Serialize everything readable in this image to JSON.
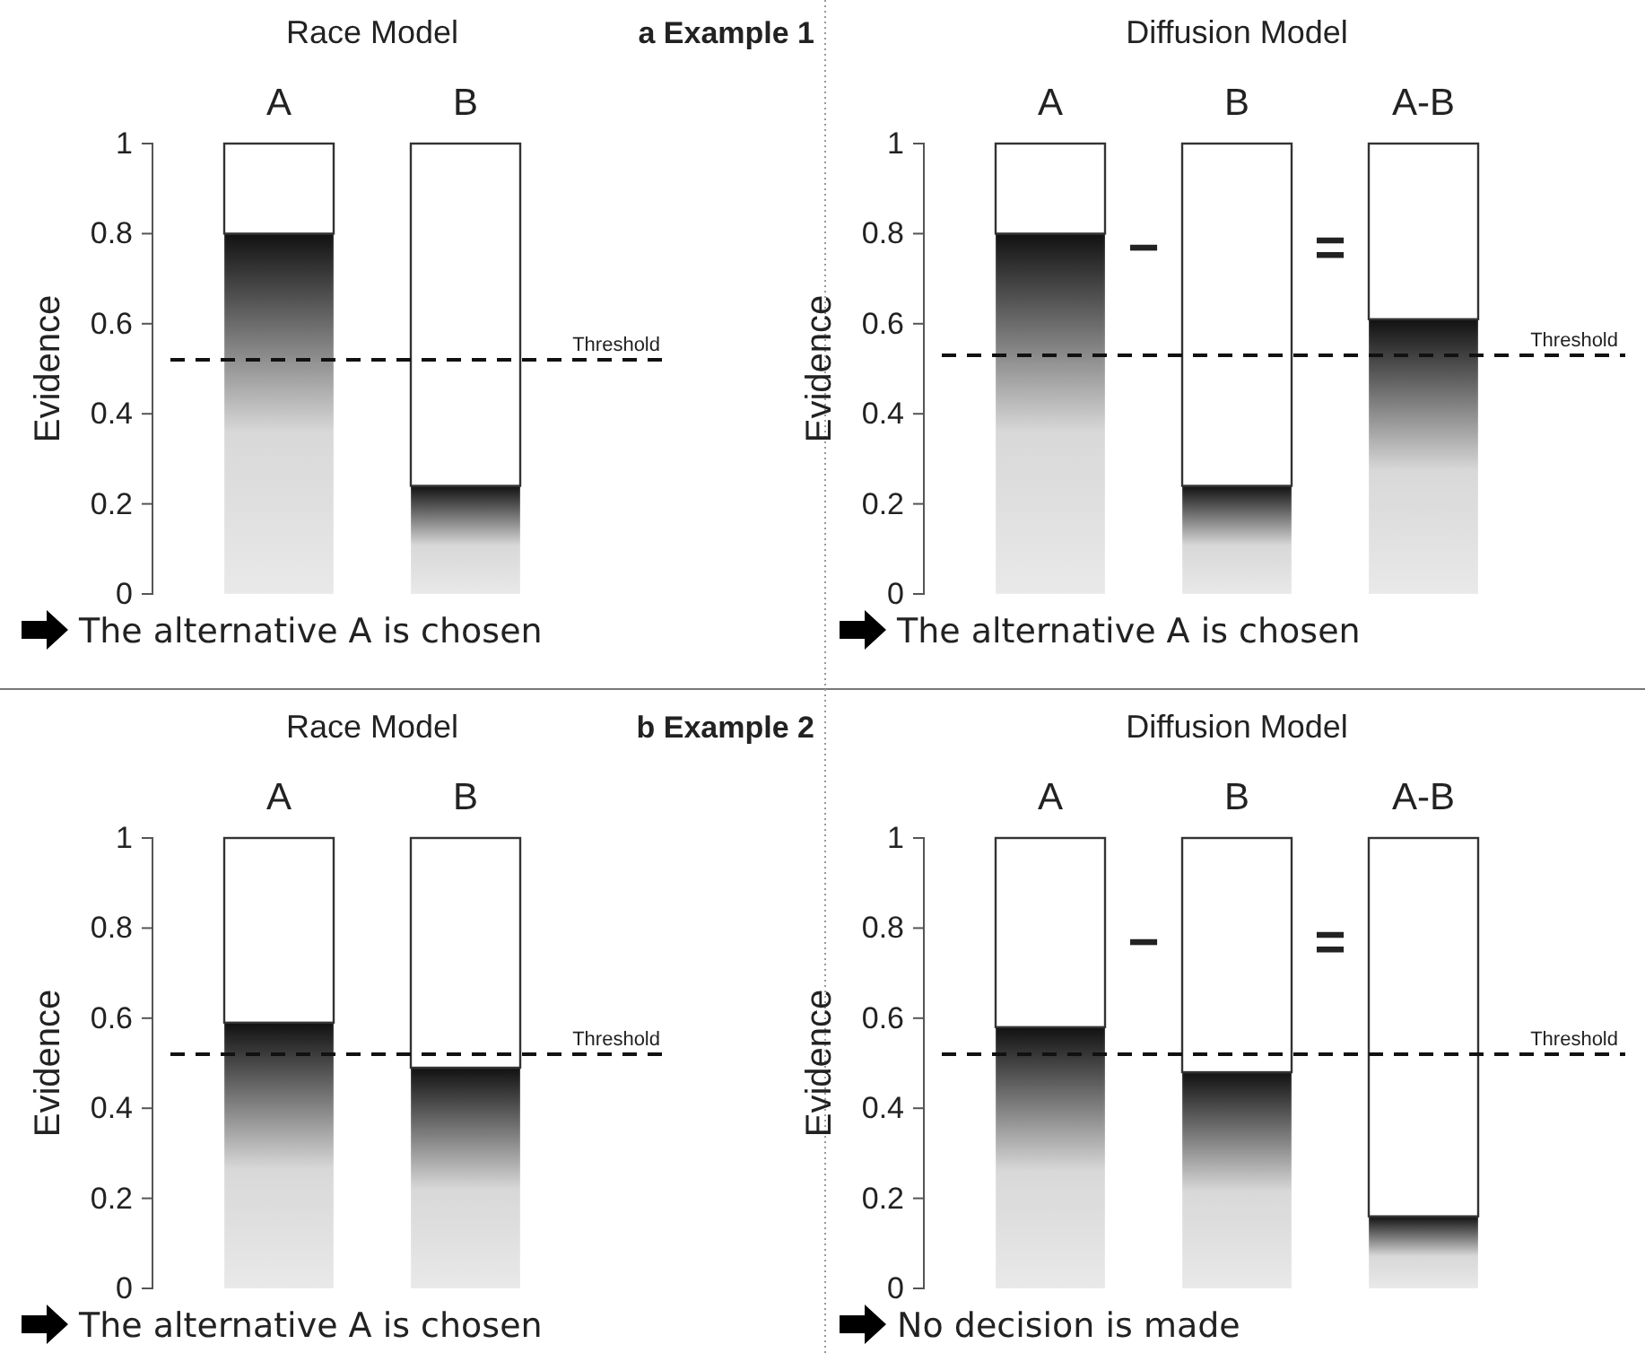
{
  "chart_data": [
    {
      "type": "bar",
      "title": "Race Model",
      "subtitle": "a Example 1",
      "ylabel": "Evidence",
      "categories": [
        "A",
        "B"
      ],
      "stacked": true,
      "series": [
        {
          "color": "#111111",
          "values": [
            0.8,
            0.24
          ]
        },
        {
          "color": "#ffffff",
          "values": [
            0.2,
            0.76
          ]
        }
      ],
      "ylim": [
        0,
        1
      ],
      "yticks": [
        0,
        0.2,
        0.4,
        0.6,
        0.8,
        1
      ],
      "ref_lines": [
        {
          "axis": "y",
          "value": 0.52,
          "label": "Threshold",
          "line_style": "dashed"
        }
      ],
      "annotations": [
        "The alternative A is chosen"
      ]
    },
    {
      "type": "bar",
      "title": "Diffusion Model",
      "ylabel": "Evidence",
      "categories": [
        "A",
        "B",
        "A-B"
      ],
      "stacked": true,
      "series": [
        {
          "color": "#111111",
          "values": [
            0.8,
            0.24,
            0.61
          ]
        },
        {
          "color": "#ffffff",
          "values": [
            0.2,
            0.76,
            0.39
          ]
        }
      ],
      "ylim": [
        0,
        1
      ],
      "yticks": [
        0,
        0.2,
        0.4,
        0.6,
        0.8,
        1
      ],
      "ref_lines": [
        {
          "axis": "y",
          "value": 0.53,
          "label": "Threshold",
          "line_style": "dashed"
        }
      ],
      "annotations": [
        "−",
        "=",
        "The alternative A is chosen"
      ]
    },
    {
      "type": "bar",
      "title": "Race Model",
      "subtitle": "b Example 2",
      "ylabel": "Evidence",
      "categories": [
        "A",
        "B"
      ],
      "stacked": true,
      "series": [
        {
          "color": "#111111",
          "values": [
            0.59,
            0.49
          ]
        },
        {
          "color": "#ffffff",
          "values": [
            0.41,
            0.51
          ]
        }
      ],
      "ylim": [
        0,
        1
      ],
      "yticks": [
        0,
        0.2,
        0.4,
        0.6,
        0.8,
        1
      ],
      "ref_lines": [
        {
          "axis": "y",
          "value": 0.52,
          "label": "Threshold",
          "line_style": "dashed"
        }
      ],
      "annotations": [
        "The alternative A is chosen"
      ]
    },
    {
      "type": "bar",
      "title": "Diffusion Model",
      "ylabel": "Evidence",
      "categories": [
        "A",
        "B",
        "A-B"
      ],
      "stacked": true,
      "series": [
        {
          "color": "#111111",
          "values": [
            0.58,
            0.48,
            0.16
          ]
        },
        {
          "color": "#ffffff",
          "values": [
            0.42,
            0.52,
            0.84
          ]
        }
      ],
      "ylim": [
        0,
        1
      ],
      "yticks": [
        0,
        0.2,
        0.4,
        0.6,
        0.8,
        1
      ],
      "ref_lines": [
        {
          "axis": "y",
          "value": 0.52,
          "label": "Threshold",
          "line_style": "dashed"
        }
      ],
      "annotations": [
        "−",
        "=",
        "No decision is made"
      ]
    }
  ]
}
